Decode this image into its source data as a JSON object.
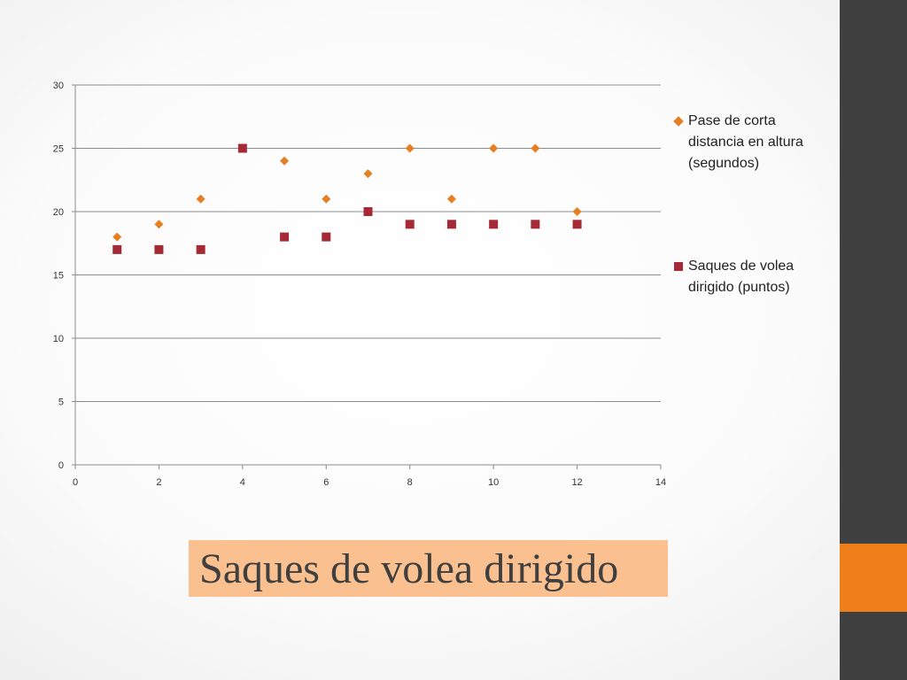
{
  "slide": {
    "title": "Saques de volea dirigido",
    "colors": {
      "sidebar": "#404040",
      "sidebar_accent": "#ef7f1a",
      "title_highlight": "#fac090"
    }
  },
  "chart_data": {
    "type": "scatter",
    "title": "",
    "xlabel": "",
    "ylabel": "",
    "xlim": [
      0,
      14
    ],
    "ylim": [
      0,
      30
    ],
    "x_ticks": [
      "0",
      "2",
      "4",
      "6",
      "8",
      "10",
      "12",
      "14"
    ],
    "y_ticks": [
      "0",
      "5",
      "10",
      "15",
      "20",
      "25",
      "30"
    ],
    "grid": true,
    "legend_position": "right",
    "series": [
      {
        "name": "Pase de corta distancia en altura (segundos)",
        "marker": "diamond",
        "color": "#e67e22",
        "x": [
          1,
          2,
          3,
          5,
          6,
          7,
          8,
          9,
          10,
          11,
          12
        ],
        "y": [
          18,
          19,
          21,
          24,
          21,
          23,
          25,
          21,
          25,
          25,
          20
        ]
      },
      {
        "name": "Saques de volea dirigido (puntos)",
        "marker": "square",
        "color": "#a52a36",
        "x": [
          1,
          2,
          3,
          4,
          5,
          6,
          7,
          8,
          9,
          10,
          11,
          12
        ],
        "y": [
          17,
          17,
          17,
          25,
          18,
          18,
          20,
          19,
          19,
          19,
          19,
          19
        ]
      }
    ]
  }
}
